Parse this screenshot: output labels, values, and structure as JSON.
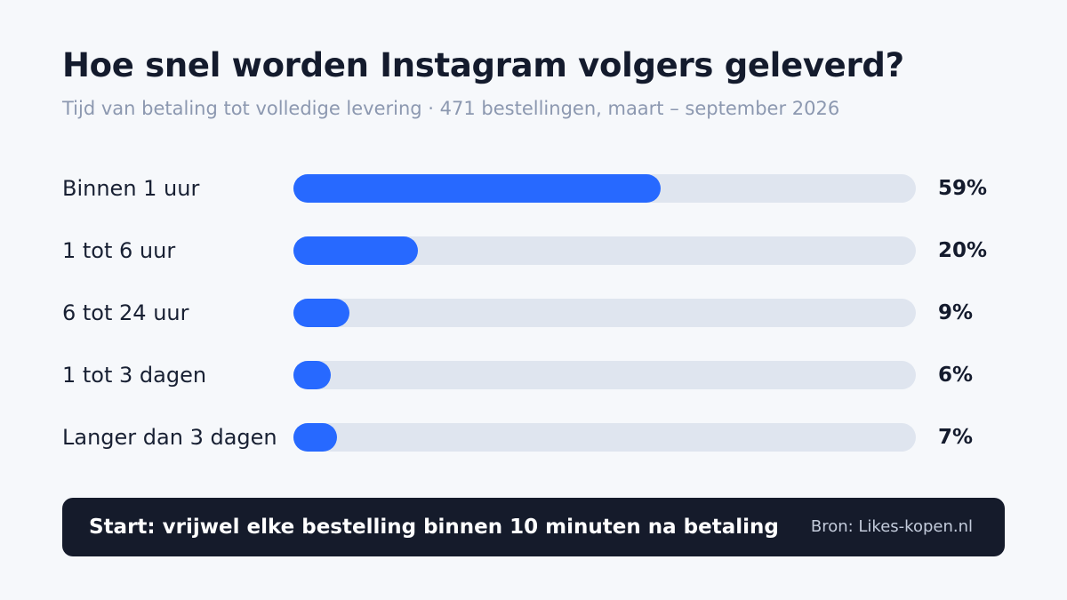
{
  "chart_data": {
    "type": "bar",
    "orientation": "horizontal",
    "title": "Hoe snel worden Instagram volgers geleverd?",
    "subtitle": "Tijd van betaling tot volledige levering · 471 bestellingen, maart – september 2026",
    "categories": [
      "Binnen 1 uur",
      "1 tot 6 uur",
      "6 tot 24 uur",
      "1 tot 3 dagen",
      "Langer dan 3 dagen"
    ],
    "values": [
      59,
      20,
      9,
      6,
      7
    ],
    "value_labels": [
      "59%",
      "20%",
      "9%",
      "6%",
      "7%"
    ],
    "unit": "%",
    "xlim": [
      0,
      100
    ],
    "grid": false,
    "colors": {
      "bar": "#2769ff",
      "track": "#dfe5ef"
    }
  },
  "footer": {
    "note": "Start: vrijwel elke bestelling binnen 10 minuten na betaling",
    "source": "Bron: Likes-kopen.nl"
  }
}
